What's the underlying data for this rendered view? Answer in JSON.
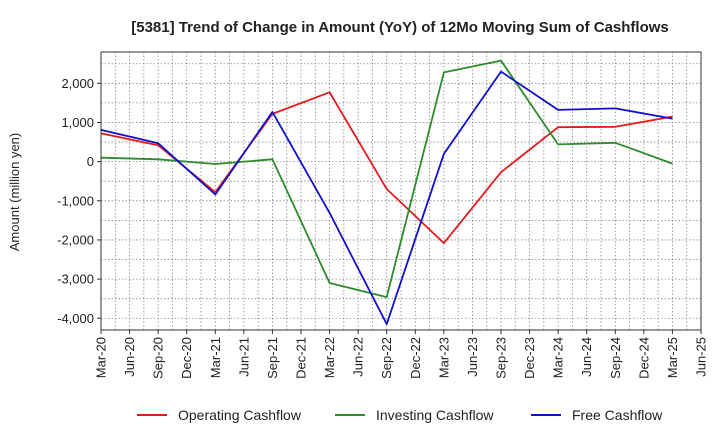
{
  "chart_data": {
    "type": "line",
    "title": "[5381]  Trend of Change in Amount (YoY) of 12Mo Moving Sum of Cashflows",
    "xlabel": "",
    "ylabel": "Amount (million yen)",
    "ylim": [
      -4300,
      2800
    ],
    "yticks": [
      2000,
      1000,
      0,
      -1000,
      -2000,
      -3000,
      -4000
    ],
    "ytick_labels": [
      "2,000",
      "1,000",
      "0",
      "-1,000",
      "-2,000",
      "-3,000",
      "-4,000"
    ],
    "x_tick_labels": [
      "Mar-20",
      "Jun-20",
      "Sep-20",
      "Dec-20",
      "Mar-21",
      "Jun-21",
      "Sep-21",
      "Dec-21",
      "Mar-22",
      "Jun-22",
      "Sep-22",
      "Dec-22",
      "Mar-23",
      "Jun-23",
      "Sep-23",
      "Dec-23",
      "Mar-24",
      "Jun-24",
      "Sep-24",
      "Dec-24",
      "Mar-25",
      "Jun-25"
    ],
    "grid": true,
    "legend_position": "bottom",
    "series": [
      {
        "name": "Operating Cashflow",
        "color": "#e31a1c",
        "x_index": [
          0,
          2,
          4,
          6,
          8,
          10,
          12,
          14,
          16,
          18,
          20
        ],
        "values": [
          720,
          420,
          -780,
          1220,
          1770,
          -700,
          -2080,
          -270,
          880,
          890,
          1150
        ]
      },
      {
        "name": "Investing Cashflow",
        "color": "#2e8b2e",
        "x_index": [
          0,
          2,
          4,
          6,
          8,
          10,
          12,
          14,
          16,
          18,
          20
        ],
        "values": [
          100,
          60,
          -60,
          60,
          -3100,
          -3460,
          2280,
          2580,
          440,
          480,
          -50
        ]
      },
      {
        "name": "Free Cashflow",
        "color": "#1010cc",
        "x_index": [
          0,
          2,
          4,
          6,
          8,
          10,
          12,
          14,
          16,
          18,
          20
        ],
        "values": [
          810,
          470,
          -840,
          1270,
          -1310,
          -4150,
          200,
          2300,
          1320,
          1360,
          1100
        ]
      }
    ]
  }
}
